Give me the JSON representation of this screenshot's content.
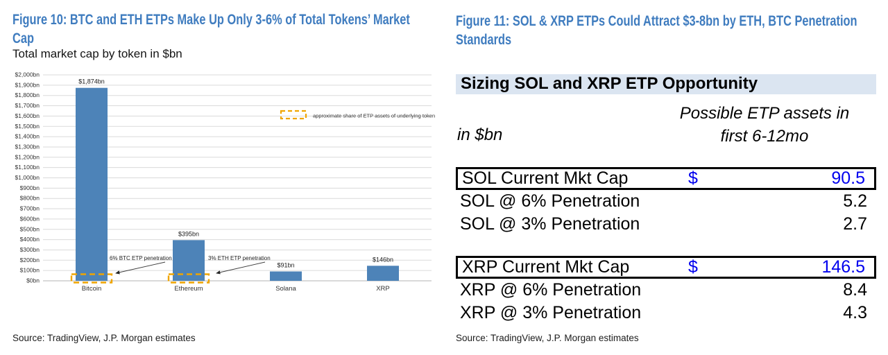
{
  "colors": {
    "figure_title_blue": "#3f7cbf",
    "bar_blue": "#4d83b8",
    "highlight_gold": "#f0a500",
    "table_header_bg": "#dbe5f1",
    "table_value_blue": "#0000ee",
    "grid_gray": "#dadada",
    "axis_gray": "#b3b3b3"
  },
  "left_figure": {
    "title": "Figure 10: BTC and ETH ETPs Make Up Only 3-6% of Total Tokens’ Market Cap",
    "subtitle": "Total market cap by token in $bn",
    "source": "Source: TradingView, J.P. Morgan estimates"
  },
  "chart_data": {
    "type": "bar",
    "title": "Total market cap by token in $bn",
    "categories": [
      "Bitcoin",
      "Ethereum",
      "Solana",
      "XRP"
    ],
    "values": [
      1874,
      395,
      91,
      146
    ],
    "bar_labels": [
      "$1,874bn",
      "$395bn",
      "$91bn",
      "$146bn"
    ],
    "xlabel": "",
    "ylabel": "",
    "ylim": [
      0,
      2000
    ],
    "ytick_step": 100,
    "ytick_format": "$N,NNNbn",
    "grid": true,
    "legend_label": "approximate share of ETP assets of underlying token",
    "legend_position": "upper-right",
    "legend_swatch": "dashed-gold-box",
    "highlight_boxes": {
      "style": "dashed-gold-rect-at-bar-base",
      "categories": [
        "Bitcoin",
        "Ethereum"
      ]
    },
    "annotations": [
      {
        "text": "6% BTC ETP penetration",
        "target": "Bitcoin"
      },
      {
        "text": "3% ETH ETP penetration",
        "target": "Ethereum"
      }
    ]
  },
  "right_figure": {
    "title": "Figure 11: SOL & XRP ETPs Could Attract $3-8bn by ETH, BTC Penetration Standards",
    "source": "Source: TradingView, J.P. Morgan estimates",
    "table": {
      "header": "Sizing SOL and XRP ETP Opportunity",
      "unit_label": "in $bn",
      "value_col_header_line1": "Possible ETP assets in",
      "value_col_header_line2": "first 6-12mo",
      "groups": [
        {
          "rows": [
            {
              "label": "SOL Current Mkt Cap",
              "currency": "$",
              "value": "90.5",
              "highlight": true
            },
            {
              "label": "SOL @ 6% Penetration",
              "currency": "",
              "value": "5.2",
              "highlight": false
            },
            {
              "label": "SOL @ 3% Penetration",
              "currency": "",
              "value": "2.7",
              "highlight": false
            }
          ]
        },
        {
          "rows": [
            {
              "label": "XRP Current Mkt Cap",
              "currency": "$",
              "value": "146.5",
              "highlight": true
            },
            {
              "label": "XRP @ 6% Penetration",
              "currency": "",
              "value": "8.4",
              "highlight": false
            },
            {
              "label": "XRP @ 3% Penetration",
              "currency": "",
              "value": "4.3",
              "highlight": false
            }
          ]
        }
      ]
    }
  }
}
